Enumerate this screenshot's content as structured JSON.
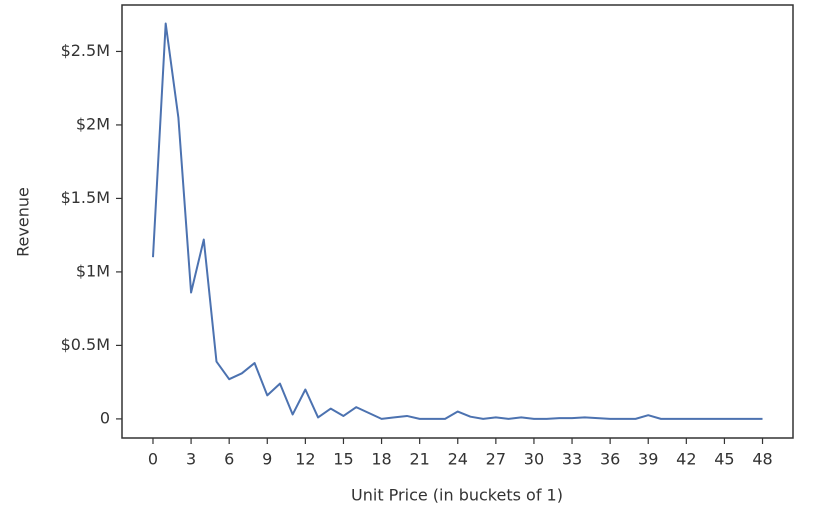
{
  "chart_data": {
    "type": "line",
    "xlabel": "Unit Price (in buckets of 1)",
    "ylabel": "Revenue",
    "x": [
      0,
      1,
      2,
      3,
      4,
      5,
      6,
      7,
      8,
      9,
      10,
      11,
      12,
      13,
      14,
      15,
      16,
      17,
      18,
      19,
      20,
      21,
      22,
      23,
      24,
      25,
      26,
      27,
      28,
      29,
      30,
      31,
      32,
      33,
      34,
      35,
      36,
      37,
      38,
      39,
      40,
      41,
      42,
      43,
      44,
      45,
      46,
      47,
      48
    ],
    "values": [
      1100000,
      2690000,
      2050000,
      860000,
      1220000,
      390000,
      270000,
      310000,
      380000,
      160000,
      240000,
      30000,
      200000,
      10000,
      70000,
      20000,
      80000,
      40000,
      0,
      10000,
      20000,
      0,
      0,
      0,
      50000,
      15000,
      0,
      10000,
      0,
      10000,
      0,
      0,
      5000,
      5000,
      10000,
      5000,
      0,
      0,
      0,
      25000,
      0,
      0,
      0,
      0,
      0,
      0,
      0,
      0,
      0
    ],
    "color": "#4c72b0",
    "xlim": [
      -2.44,
      50.4
    ],
    "ylim": [
      -130000,
      2816000
    ],
    "xticks": [
      0,
      3,
      6,
      9,
      12,
      15,
      18,
      21,
      24,
      27,
      30,
      33,
      36,
      39,
      42,
      45,
      48
    ],
    "yticks": [
      0,
      {
        "value": 500000,
        "label": "$0.5M"
      },
      {
        "value": 1000000,
        "label": "$1M"
      },
      {
        "value": 1500000,
        "label": "$1.5M"
      },
      {
        "value": 2000000,
        "label": "$2M"
      },
      {
        "value": 2500000,
        "label": "$2.5M"
      }
    ]
  }
}
